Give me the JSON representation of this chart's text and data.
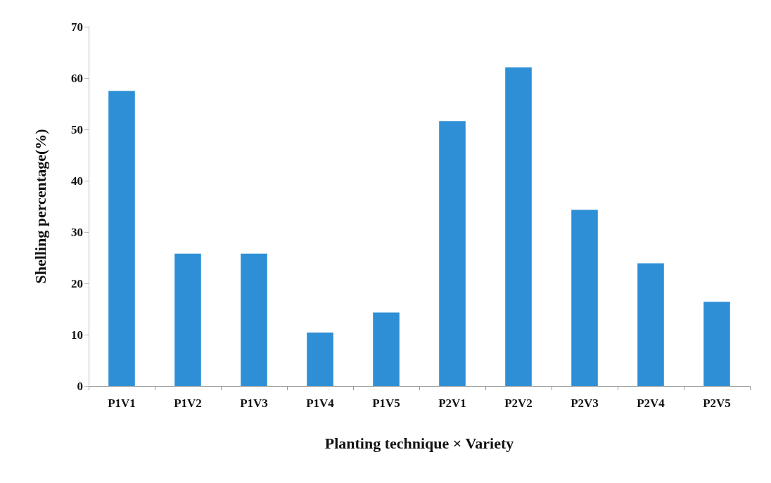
{
  "chart_data": {
    "type": "bar",
    "xlabel": "Planting technique × Variety",
    "ylabel": "Shelling percentage(%)",
    "categories": [
      "P1V1",
      "P1V2",
      "P1V3",
      "P1V4",
      "P1V5",
      "P2V1",
      "P2V2",
      "P2V3",
      "P2V4",
      "P2V5"
    ],
    "values": [
      57.5,
      25.8,
      25.8,
      10.4,
      14.3,
      51.6,
      62.1,
      34.3,
      23.9,
      16.4
    ],
    "color": "#2e8fd6",
    "ylim": [
      0,
      70
    ],
    "yticks": [
      0,
      10,
      20,
      30,
      40,
      50,
      60,
      70
    ]
  }
}
